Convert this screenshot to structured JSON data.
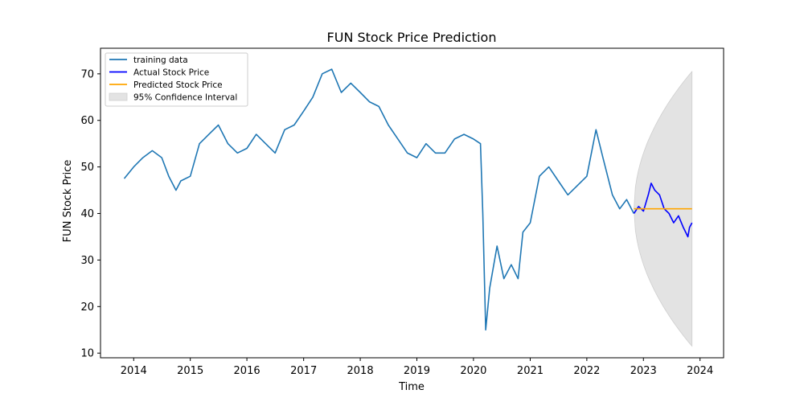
{
  "chart_data": {
    "type": "line",
    "title": "FUN Stock Price Prediction",
    "xlabel": "Time",
    "ylabel": "FUN Stock Price",
    "xlim": [
      "2013-06-01",
      "2024-06-01"
    ],
    "ylim": [
      9,
      75.5
    ],
    "xticks": [
      "2014",
      "2015",
      "2016",
      "2017",
      "2018",
      "2019",
      "2020",
      "2021",
      "2022",
      "2023",
      "2024"
    ],
    "yticks": [
      "10",
      "20",
      "30",
      "40",
      "50",
      "60",
      "70"
    ],
    "grid": false,
    "legend_position": "top-left",
    "legend": [
      {
        "label": "training data",
        "kind": "line",
        "color": "#1f77b4"
      },
      {
        "label": "Actual Stock Price",
        "kind": "line",
        "color": "#0000ff"
      },
      {
        "label": "Predicted Stock Price",
        "kind": "line",
        "color": "#ffa500"
      },
      {
        "label": "95% Confidence Interval",
        "kind": "patch",
        "color": "#e3e3e3"
      }
    ],
    "series": [
      {
        "name": "training data",
        "color": "#1f77b4",
        "points": [
          [
            "2013-11-01",
            47.5
          ],
          [
            "2014-01-01",
            50
          ],
          [
            "2014-03-01",
            52
          ],
          [
            "2014-05-01",
            53.5
          ],
          [
            "2014-07-01",
            52
          ],
          [
            "2014-08-15",
            48
          ],
          [
            "2014-10-01",
            45
          ],
          [
            "2014-11-01",
            47
          ],
          [
            "2015-01-01",
            48
          ],
          [
            "2015-03-01",
            55
          ],
          [
            "2015-05-01",
            57
          ],
          [
            "2015-07-01",
            59
          ],
          [
            "2015-09-01",
            55
          ],
          [
            "2015-11-01",
            53
          ],
          [
            "2016-01-01",
            54
          ],
          [
            "2016-03-01",
            57
          ],
          [
            "2016-05-01",
            55
          ],
          [
            "2016-07-01",
            53
          ],
          [
            "2016-09-01",
            58
          ],
          [
            "2016-11-01",
            59
          ],
          [
            "2017-01-01",
            62
          ],
          [
            "2017-03-01",
            65
          ],
          [
            "2017-05-01",
            70
          ],
          [
            "2017-07-01",
            71
          ],
          [
            "2017-09-01",
            66
          ],
          [
            "2017-11-01",
            68
          ],
          [
            "2018-01-01",
            66
          ],
          [
            "2018-03-01",
            64
          ],
          [
            "2018-05-01",
            63
          ],
          [
            "2018-07-01",
            59
          ],
          [
            "2018-09-01",
            56
          ],
          [
            "2018-11-01",
            53
          ],
          [
            "2019-01-01",
            52
          ],
          [
            "2019-03-01",
            55
          ],
          [
            "2019-05-01",
            53
          ],
          [
            "2019-07-01",
            53
          ],
          [
            "2019-09-01",
            56
          ],
          [
            "2019-11-01",
            57
          ],
          [
            "2020-01-01",
            56
          ],
          [
            "2020-02-15",
            55
          ],
          [
            "2020-03-01",
            40
          ],
          [
            "2020-03-20",
            15
          ],
          [
            "2020-04-15",
            24
          ],
          [
            "2020-06-01",
            33
          ],
          [
            "2020-07-15",
            26
          ],
          [
            "2020-09-01",
            29
          ],
          [
            "2020-10-15",
            26
          ],
          [
            "2020-11-15",
            36
          ],
          [
            "2021-01-01",
            38
          ],
          [
            "2021-03-01",
            48
          ],
          [
            "2021-05-01",
            50
          ],
          [
            "2021-07-01",
            47
          ],
          [
            "2021-09-01",
            44
          ],
          [
            "2021-11-01",
            46
          ],
          [
            "2022-01-01",
            48
          ],
          [
            "2022-03-01",
            58
          ],
          [
            "2022-04-15",
            52
          ],
          [
            "2022-06-15",
            44
          ],
          [
            "2022-08-01",
            41
          ],
          [
            "2022-09-15",
            43
          ],
          [
            "2022-10-31",
            40
          ]
        ]
      },
      {
        "name": "Actual Stock Price",
        "color": "#0000ff",
        "points": [
          [
            "2022-11-01",
            40
          ],
          [
            "2022-12-01",
            41.5
          ],
          [
            "2023-01-01",
            40.5
          ],
          [
            "2023-02-01",
            44
          ],
          [
            "2023-02-20",
            46.5
          ],
          [
            "2023-03-15",
            45
          ],
          [
            "2023-04-15",
            44
          ],
          [
            "2023-05-15",
            41
          ],
          [
            "2023-06-15",
            40
          ],
          [
            "2023-07-15",
            38
          ],
          [
            "2023-08-15",
            39.5
          ],
          [
            "2023-09-15",
            37
          ],
          [
            "2023-10-15",
            35
          ],
          [
            "2023-10-25",
            37
          ],
          [
            "2023-11-10",
            38
          ]
        ]
      },
      {
        "name": "Predicted Stock Price",
        "color": "#ffa500",
        "points": [
          [
            "2022-11-01",
            41
          ],
          [
            "2023-11-10",
            41
          ]
        ]
      }
    ],
    "confidence_interval": {
      "label": "95% Confidence Interval",
      "color": "#e3e3e3",
      "center": 41,
      "start": "2022-11-01",
      "end": "2023-11-10",
      "half_width_at_end": 29.5
    }
  }
}
